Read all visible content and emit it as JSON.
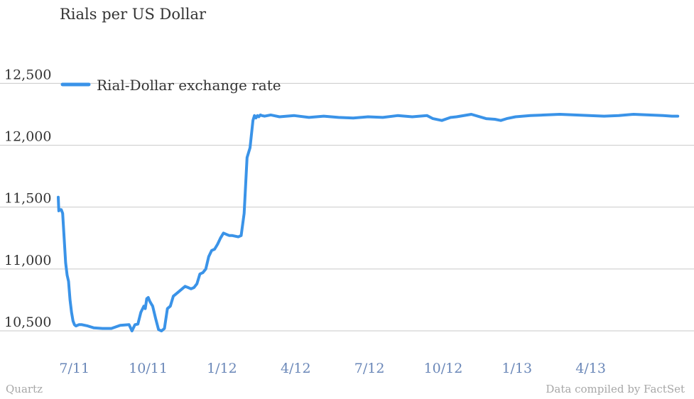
{
  "chart_data": {
    "type": "line",
    "title": "Rials per US Dollar",
    "xlabel": "",
    "ylabel": "",
    "ylim": [
      10420,
      12600
    ],
    "yticks": [
      10500,
      11000,
      11500,
      12000,
      12500
    ],
    "ytick_labels": [
      "10,500",
      "11,000",
      "11,500",
      "12,000",
      "12,500"
    ],
    "xlim": [
      2011.45,
      2013.6
    ],
    "xticks": [
      2011.5,
      2011.75,
      2012.0,
      2012.25,
      2012.5,
      2012.75,
      2013.0,
      2013.25
    ],
    "xtick_labels": [
      "7/11",
      "10/11",
      "1/12",
      "4/12",
      "7/12",
      "10/12",
      "1/13",
      "4/13"
    ],
    "grid": true,
    "legend_position": "top-left",
    "series": [
      {
        "name": "Rial-Dollar exchange rate",
        "color": "#3a93e8",
        "x": [
          2011.45,
          2011.452,
          2011.455,
          2011.46,
          2011.465,
          2011.47,
          2011.475,
          2011.48,
          2011.485,
          2011.49,
          2011.495,
          2011.5,
          2011.505,
          2011.51,
          2011.52,
          2011.53,
          2011.55,
          2011.57,
          2011.6,
          2011.63,
          2011.66,
          2011.69,
          2011.7,
          2011.71,
          2011.72,
          2011.73,
          2011.74,
          2011.745,
          2011.75,
          2011.755,
          2011.76,
          2011.765,
          2011.77,
          2011.78,
          2011.79,
          2011.8,
          2011.81,
          2011.82,
          2011.83,
          2011.84,
          2011.85,
          2011.86,
          2011.87,
          2011.88,
          2011.89,
          2011.9,
          2011.91,
          2011.92,
          2011.93,
          2011.94,
          2011.95,
          2011.96,
          2011.97,
          2011.98,
          2011.99,
          2012.0,
          2012.01,
          2012.02,
          2012.03,
          2012.04,
          2012.05,
          2012.06,
          2012.07,
          2012.08,
          2012.09,
          2012.1,
          2012.11,
          2012.115,
          2012.12,
          2012.125,
          2012.13,
          2012.135,
          2012.14,
          2012.15,
          2012.17,
          2012.2,
          2012.25,
          2012.3,
          2012.35,
          2012.4,
          2012.45,
          2012.5,
          2012.55,
          2012.6,
          2012.65,
          2012.7,
          2012.72,
          2012.75,
          2012.78,
          2012.8,
          2012.85,
          2012.9,
          2012.93,
          2012.95,
          2012.97,
          2013.0,
          2013.05,
          2013.1,
          2013.15,
          2013.2,
          2013.25,
          2013.3,
          2013.35,
          2013.4,
          2013.45,
          2013.5,
          2013.53,
          2013.55
        ],
        "values": [
          11580,
          11470,
          11480,
          11480,
          11450,
          11250,
          11050,
          10950,
          10900,
          10750,
          10650,
          10580,
          10550,
          10540,
          10550,
          10550,
          10540,
          10525,
          10520,
          10520,
          10545,
          10550,
          10500,
          10550,
          10555,
          10650,
          10700,
          10680,
          10760,
          10770,
          10740,
          10720,
          10700,
          10600,
          10510,
          10500,
          10520,
          10680,
          10700,
          10780,
          10800,
          10820,
          10840,
          10860,
          10850,
          10840,
          10850,
          10880,
          10960,
          10970,
          11000,
          11100,
          11150,
          11160,
          11200,
          11250,
          11290,
          11280,
          11270,
          11270,
          11265,
          11260,
          11270,
          11450,
          11900,
          11980,
          12200,
          12240,
          12220,
          12240,
          12230,
          12245,
          12240,
          12235,
          12245,
          12230,
          12240,
          12225,
          12235,
          12225,
          12220,
          12230,
          12225,
          12240,
          12230,
          12240,
          12215,
          12200,
          12225,
          12230,
          12250,
          12215,
          12210,
          12200,
          12215,
          12230,
          12240,
          12245,
          12250,
          12245,
          12240,
          12235,
          12240,
          12250,
          12245,
          12240,
          12235,
          12235
        ]
      }
    ]
  },
  "footer": {
    "source_left": "Quartz",
    "source_right": "Data compiled by FactSet"
  }
}
